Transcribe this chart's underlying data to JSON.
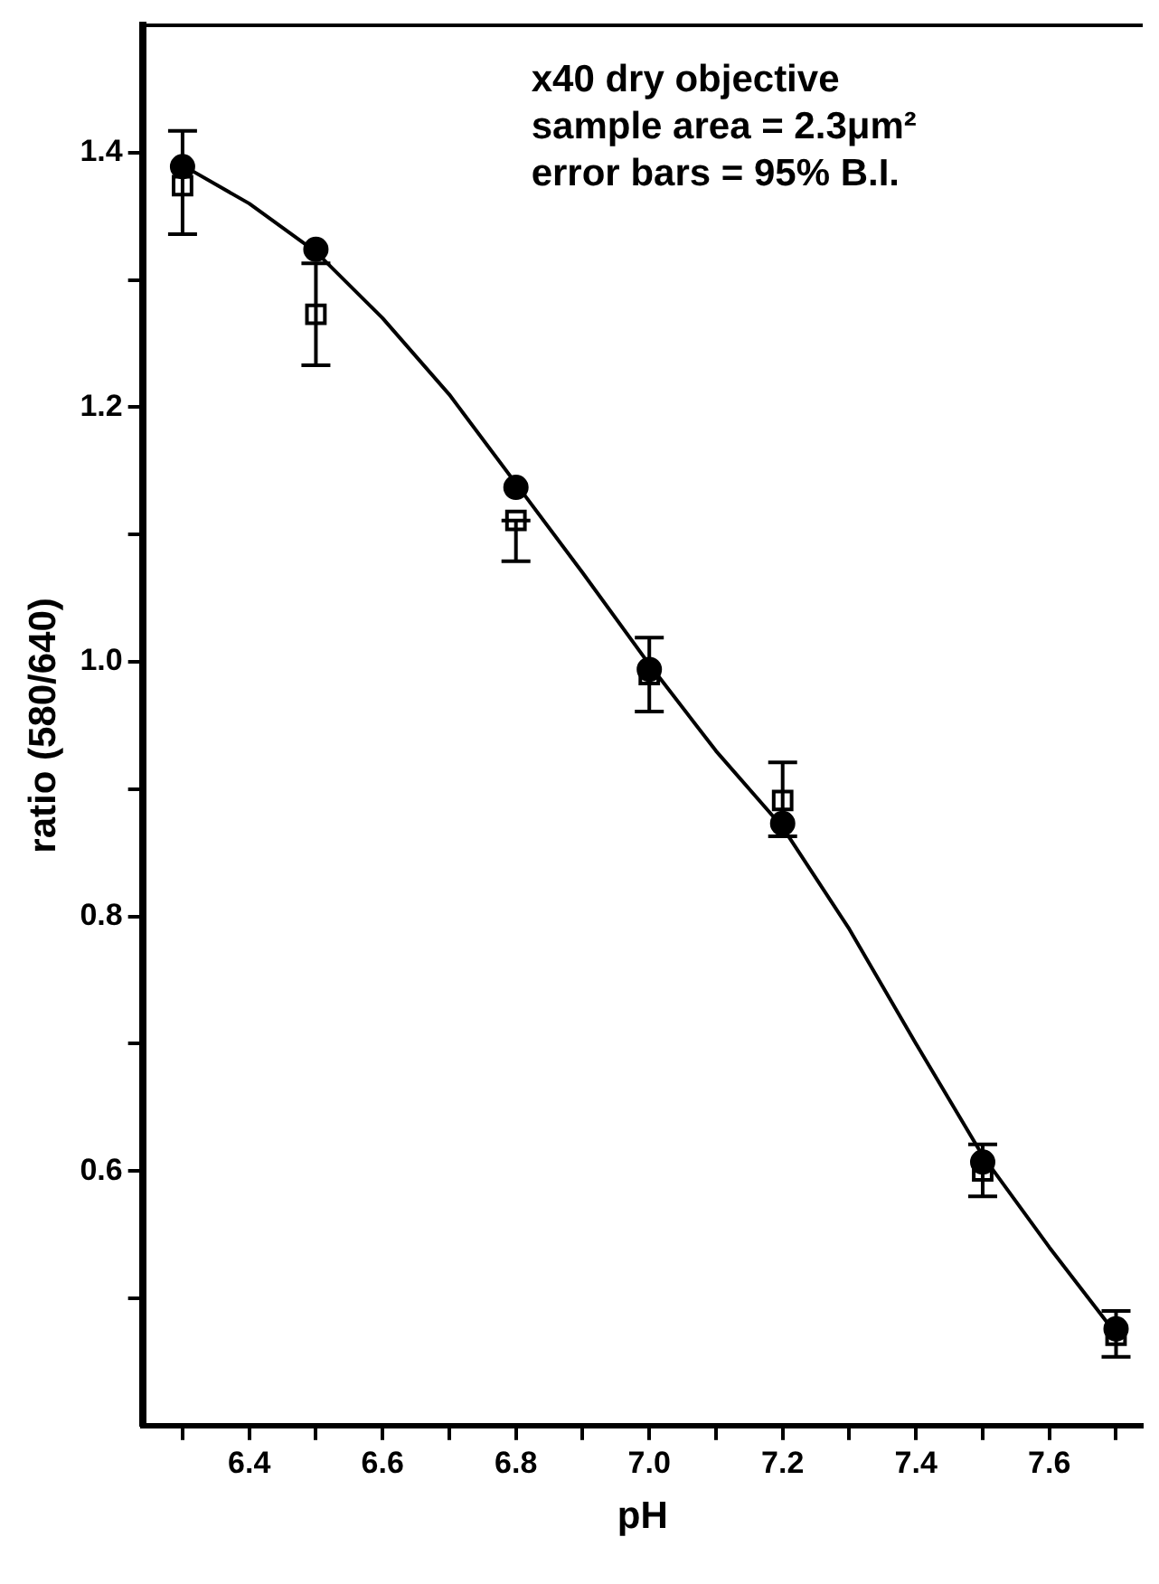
{
  "chart_data": {
    "type": "scatter",
    "xlabel": "pH",
    "ylabel": "ratio (580/640)",
    "annotations": [
      "x40 dry objective",
      "sample area = 2.3μm²",
      "error bars = 95% B.I."
    ],
    "xlim": [
      6.24,
      7.74
    ],
    "xticks": [
      {
        "value": 6.3,
        "label": null
      },
      {
        "value": 6.4,
        "label": "6.4"
      },
      {
        "value": 6.5,
        "label": null
      },
      {
        "value": 6.6,
        "label": "6.6"
      },
      {
        "value": 6.7,
        "label": null
      },
      {
        "value": 6.8,
        "label": "6.8"
      },
      {
        "value": 6.9,
        "label": null
      },
      {
        "value": 7,
        "label": "7.0"
      },
      {
        "value": 7.1,
        "label": null
      },
      {
        "value": 7.2,
        "label": "7.2"
      },
      {
        "value": 7.3,
        "label": null
      },
      {
        "value": 7.4,
        "label": "7.4"
      },
      {
        "value": 7.5,
        "label": null
      },
      {
        "value": 7.6,
        "label": "7.6"
      },
      {
        "value": 7.7,
        "label": null
      }
    ],
    "ylim": [
      0.4,
      1.5
    ],
    "yticks": [
      {
        "value": 0.5,
        "label": null
      },
      {
        "value": 0.6,
        "label": "0.6"
      },
      {
        "value": 0.7,
        "label": null
      },
      {
        "value": 0.8,
        "label": "0.8"
      },
      {
        "value": 0.9,
        "label": null
      },
      {
        "value": 1,
        "label": "1.0"
      },
      {
        "value": 1.1,
        "label": null
      },
      {
        "value": 1.2,
        "label": "1.2"
      },
      {
        "value": 1.3,
        "label": null
      },
      {
        "value": 1.4,
        "label": "1.4"
      }
    ],
    "grid": false,
    "legend": false,
    "series": [
      {
        "marker": "square",
        "color": "#000000",
        "x": [
          6.3,
          6.5,
          6.8,
          7.0,
          7.2,
          7.5,
          7.7
        ],
        "values": [
          1.374,
          1.273,
          1.111,
          0.99,
          0.891,
          0.6,
          0.471
        ],
        "errors": [
          [
            1.336,
            1.417
          ],
          [
            1.233,
            1.313
          ],
          [
            1.079,
            1.111
          ],
          [
            0.961,
            1.019
          ],
          [
            0.863,
            0.921
          ],
          [
            0.58,
            0.621
          ],
          [
            0.454,
            0.49
          ]
        ]
      },
      {
        "marker": "circle",
        "color": "#000000",
        "x": [
          6.3,
          6.5,
          6.8,
          7.0,
          7.2,
          7.5,
          7.7
        ],
        "values": [
          1.389,
          1.324,
          1.137,
          0.994,
          0.873,
          0.607,
          0.476
        ]
      },
      {
        "type": "line",
        "marker": "none",
        "line_style": "solid",
        "color": "#000000",
        "x": [
          6.3,
          6.4,
          6.5,
          6.6,
          6.7,
          6.8,
          6.9,
          7.0,
          7.1,
          7.2,
          7.3,
          7.4,
          7.5,
          7.6,
          7.7
        ],
        "values": [
          1.39,
          1.36,
          1.322,
          1.27,
          1.21,
          1.14,
          1.07,
          0.998,
          0.93,
          0.87,
          0.79,
          0.7,
          0.612,
          0.54,
          0.472
        ]
      }
    ]
  }
}
